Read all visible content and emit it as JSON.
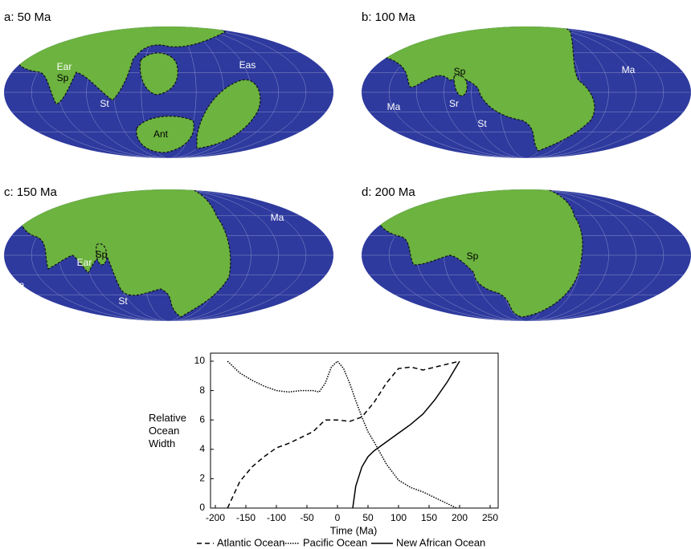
{
  "maps": [
    {
      "title": "a: 50 Ma",
      "labels": [
        "Ear",
        "Sp",
        "St",
        "Eas",
        "Ant"
      ]
    },
    {
      "title": "b: 100 Ma",
      "labels": [
        "Sp",
        "Ma",
        "Ma",
        "Sr",
        "St"
      ]
    },
    {
      "title": "c: 150 Ma",
      "labels": [
        "Ma",
        "Ear",
        "Sp",
        "Ma",
        "St"
      ]
    },
    {
      "title": "d: 200 Ma",
      "labels": [
        "Sp"
      ]
    }
  ],
  "chart_data": {
    "type": "line",
    "x_label": "Time (Ma)",
    "y_label": "Relative Ocean Width",
    "xlim": [
      -200,
      250
    ],
    "xticks": [
      -200,
      -150,
      -100,
      -50,
      0,
      50,
      100,
      150,
      200,
      250
    ],
    "ylim": [
      0,
      10
    ],
    "yticks": [
      0,
      2,
      4,
      6,
      8,
      10
    ],
    "series": [
      {
        "name": "Atlantic Ocean",
        "color": "#000000",
        "dash": "6,4",
        "x": [
          -180,
          -160,
          -140,
          -120,
          -100,
          -80,
          -60,
          -40,
          -20,
          0,
          20,
          40,
          60,
          80,
          100,
          120,
          140,
          160,
          180,
          200
        ],
        "values": [
          0,
          1.8,
          2.8,
          3.5,
          4.1,
          4.4,
          4.8,
          5.2,
          6.0,
          6.0,
          5.9,
          6.2,
          7.2,
          8.5,
          9.5,
          9.6,
          9.4,
          9.6,
          9.8,
          10
        ]
      },
      {
        "name": "Pacific Ocean",
        "color": "#000000",
        "dash": "1.5,1.5",
        "x": [
          -180,
          -160,
          -140,
          -120,
          -100,
          -80,
          -60,
          -40,
          -30,
          -20,
          -10,
          0,
          10,
          20,
          30,
          40,
          50,
          60,
          80,
          100,
          120,
          140,
          160,
          180,
          195
        ],
        "values": [
          10,
          9.2,
          8.7,
          8.3,
          8.0,
          7.9,
          8.0,
          8.0,
          7.9,
          8.5,
          9.6,
          10,
          9.5,
          8.5,
          7.3,
          6.2,
          5.2,
          4.5,
          3.0,
          1.9,
          1.4,
          1.1,
          0.7,
          0.3,
          0
        ]
      },
      {
        "name": "New African Ocean",
        "color": "#000000",
        "dash": "none",
        "x": [
          25,
          30,
          40,
          50,
          60,
          80,
          100,
          120,
          140,
          160,
          180,
          200
        ],
        "values": [
          0,
          1.5,
          2.8,
          3.5,
          3.9,
          4.5,
          5.1,
          5.7,
          6.4,
          7.4,
          8.6,
          10
        ]
      }
    ]
  }
}
